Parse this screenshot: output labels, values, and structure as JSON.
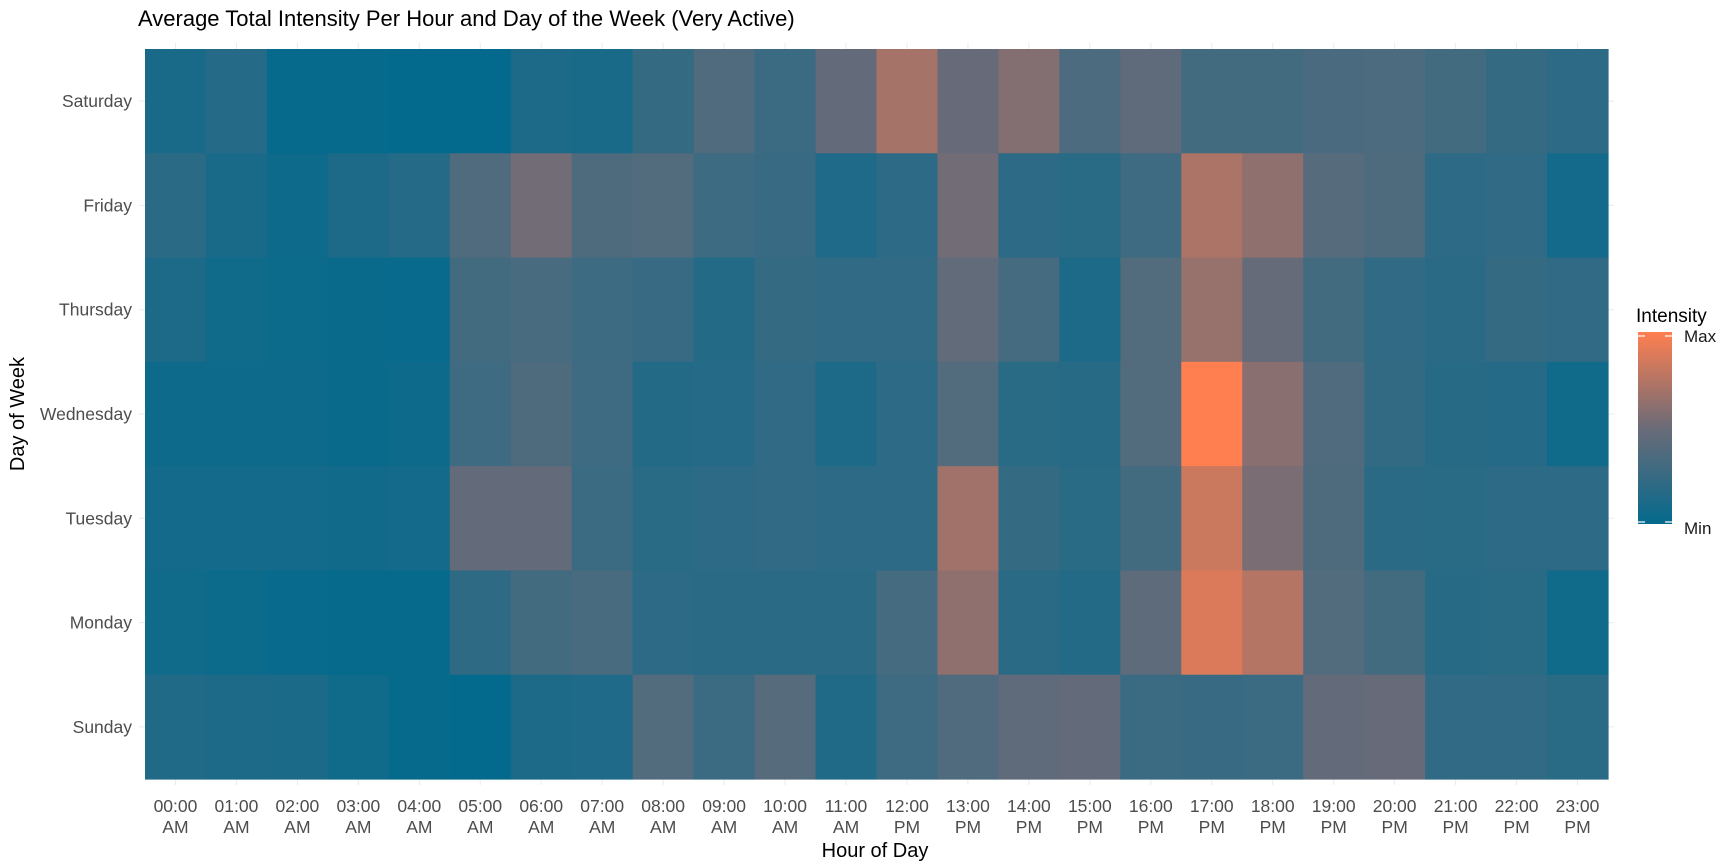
{
  "chart_data": {
    "type": "heatmap",
    "title": "Average Total Intensity Per Hour and Day of the Week (Very Active)",
    "xlabel": "Hour of Day",
    "ylabel": "Day of Week",
    "x": [
      [
        "00:00",
        "AM"
      ],
      [
        "01:00",
        "AM"
      ],
      [
        "02:00",
        "AM"
      ],
      [
        "03:00",
        "AM"
      ],
      [
        "04:00",
        "AM"
      ],
      [
        "05:00",
        "AM"
      ],
      [
        "06:00",
        "AM"
      ],
      [
        "07:00",
        "AM"
      ],
      [
        "08:00",
        "AM"
      ],
      [
        "09:00",
        "AM"
      ],
      [
        "10:00",
        "AM"
      ],
      [
        "11:00",
        "AM"
      ],
      [
        "12:00",
        "PM"
      ],
      [
        "13:00",
        "PM"
      ],
      [
        "14:00",
        "PM"
      ],
      [
        "15:00",
        "PM"
      ],
      [
        "16:00",
        "PM"
      ],
      [
        "17:00",
        "PM"
      ],
      [
        "18:00",
        "PM"
      ],
      [
        "19:00",
        "PM"
      ],
      [
        "20:00",
        "PM"
      ],
      [
        "21:00",
        "PM"
      ],
      [
        "22:00",
        "PM"
      ],
      [
        "23:00",
        "PM"
      ]
    ],
    "y": [
      "Saturday",
      "Friday",
      "Thursday",
      "Wednesday",
      "Tuesday",
      "Monday",
      "Sunday"
    ],
    "values": [
      [
        0.1,
        0.16,
        0.01,
        0.01,
        0.0,
        0.0,
        0.12,
        0.1,
        0.24,
        0.37,
        0.26,
        0.46,
        0.7,
        0.48,
        0.58,
        0.35,
        0.44,
        0.3,
        0.3,
        0.34,
        0.35,
        0.3,
        0.24,
        0.2
      ],
      [
        0.19,
        0.1,
        0.05,
        0.12,
        0.16,
        0.37,
        0.52,
        0.36,
        0.38,
        0.27,
        0.25,
        0.13,
        0.2,
        0.52,
        0.2,
        0.18,
        0.28,
        0.72,
        0.62,
        0.4,
        0.36,
        0.2,
        0.22,
        0.08
      ],
      [
        0.12,
        0.06,
        0.04,
        0.03,
        0.02,
        0.3,
        0.33,
        0.27,
        0.25,
        0.15,
        0.24,
        0.22,
        0.22,
        0.45,
        0.31,
        0.12,
        0.38,
        0.65,
        0.47,
        0.3,
        0.22,
        0.19,
        0.24,
        0.22
      ],
      [
        0.05,
        0.05,
        0.05,
        0.03,
        0.05,
        0.28,
        0.36,
        0.28,
        0.15,
        0.16,
        0.22,
        0.12,
        0.2,
        0.38,
        0.18,
        0.17,
        0.38,
        1.0,
        0.6,
        0.37,
        0.23,
        0.17,
        0.16,
        0.06
      ],
      [
        0.08,
        0.08,
        0.08,
        0.07,
        0.08,
        0.46,
        0.46,
        0.26,
        0.18,
        0.2,
        0.22,
        0.2,
        0.2,
        0.68,
        0.24,
        0.18,
        0.3,
        0.82,
        0.55,
        0.36,
        0.19,
        0.18,
        0.2,
        0.2
      ],
      [
        0.06,
        0.04,
        0.02,
        0.01,
        0.01,
        0.21,
        0.3,
        0.33,
        0.2,
        0.19,
        0.19,
        0.19,
        0.31,
        0.62,
        0.19,
        0.15,
        0.43,
        0.88,
        0.75,
        0.38,
        0.3,
        0.17,
        0.18,
        0.06
      ],
      [
        0.14,
        0.12,
        0.11,
        0.06,
        0.01,
        0.0,
        0.12,
        0.13,
        0.38,
        0.26,
        0.4,
        0.14,
        0.28,
        0.37,
        0.44,
        0.46,
        0.26,
        0.25,
        0.26,
        0.46,
        0.48,
        0.22,
        0.22,
        0.18
      ]
    ],
    "color_scale": {
      "low": "#046a8d",
      "mid": "#6b6b78",
      "high": "#ff7f50"
    },
    "legend": {
      "title": "Intensity",
      "max_label": "Max",
      "min_label": "Min",
      "position": "right"
    },
    "grid": true
  }
}
